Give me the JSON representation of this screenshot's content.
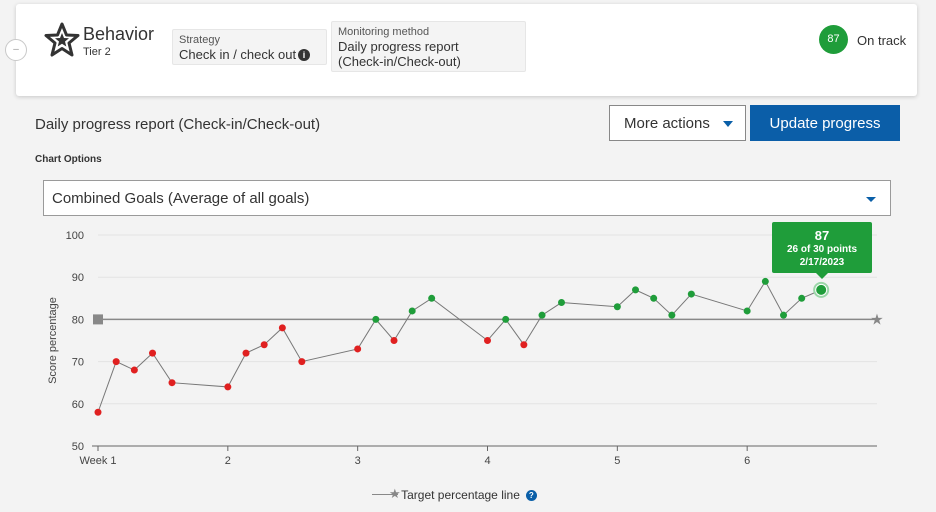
{
  "header": {
    "collapse_icon": "minus-icon",
    "icon": "star-icon",
    "title": "Behavior",
    "tier": "Tier 2",
    "strategy": {
      "label": "Strategy",
      "value": "Check in / check out",
      "icon": "info-icon"
    },
    "monitoring": {
      "label": "Monitoring method",
      "value_line1": "Daily progress report",
      "value_line2": "(Check-in/Check-out)"
    },
    "score": "87",
    "status": "On track"
  },
  "section": {
    "title": "Daily progress report (Check-in/Check-out)",
    "more_actions_label": "More actions",
    "update_label": "Update progress",
    "chart_options_label": "Chart Options",
    "selected_option": "Combined Goals (Average of all goals)"
  },
  "colors": {
    "on_target": "#1f9d3a",
    "below_target": "#e02020",
    "primary": "#0b5ea8",
    "target_line": "#888888"
  },
  "chart_data": {
    "type": "line",
    "ylabel": "Score percentage",
    "ylim": [
      50,
      100
    ],
    "yticks": [
      "100",
      "90",
      "80",
      "70",
      "60",
      "50"
    ],
    "xlim": [
      1,
      7
    ],
    "xticks": [
      "Week 1",
      "2",
      "3",
      "4",
      "5",
      "6"
    ],
    "target": 80,
    "grid": true,
    "series": [
      {
        "points": [
          {
            "x": 1.0,
            "y": 58
          },
          {
            "x": 1.14,
            "y": 70
          },
          {
            "x": 1.28,
            "y": 68
          },
          {
            "x": 1.42,
            "y": 72
          },
          {
            "x": 1.57,
            "y": 65
          },
          {
            "x": 2.0,
            "y": 64
          },
          {
            "x": 2.14,
            "y": 72
          },
          {
            "x": 2.28,
            "y": 74
          },
          {
            "x": 2.42,
            "y": 78
          },
          {
            "x": 2.57,
            "y": 70
          },
          {
            "x": 3.0,
            "y": 73
          },
          {
            "x": 3.14,
            "y": 80
          },
          {
            "x": 3.28,
            "y": 75
          },
          {
            "x": 3.42,
            "y": 82
          },
          {
            "x": 3.57,
            "y": 85
          },
          {
            "x": 4.0,
            "y": 75
          },
          {
            "x": 4.14,
            "y": 80
          },
          {
            "x": 4.28,
            "y": 74
          },
          {
            "x": 4.42,
            "y": 81
          },
          {
            "x": 4.57,
            "y": 84
          },
          {
            "x": 5.0,
            "y": 83
          },
          {
            "x": 5.14,
            "y": 87
          },
          {
            "x": 5.28,
            "y": 85
          },
          {
            "x": 5.42,
            "y": 81
          },
          {
            "x": 5.57,
            "y": 86
          },
          {
            "x": 6.0,
            "y": 82
          },
          {
            "x": 6.14,
            "y": 89
          },
          {
            "x": 6.28,
            "y": 81
          },
          {
            "x": 6.42,
            "y": 85
          },
          {
            "x": 6.57,
            "y": 87
          }
        ]
      }
    ],
    "highlight": {
      "score": "87",
      "points": "26 of 30 points",
      "date": "2/17/2023"
    },
    "legend": {
      "label": "Target percentage line",
      "placement": "bottom",
      "help_icon": "question-icon"
    }
  }
}
